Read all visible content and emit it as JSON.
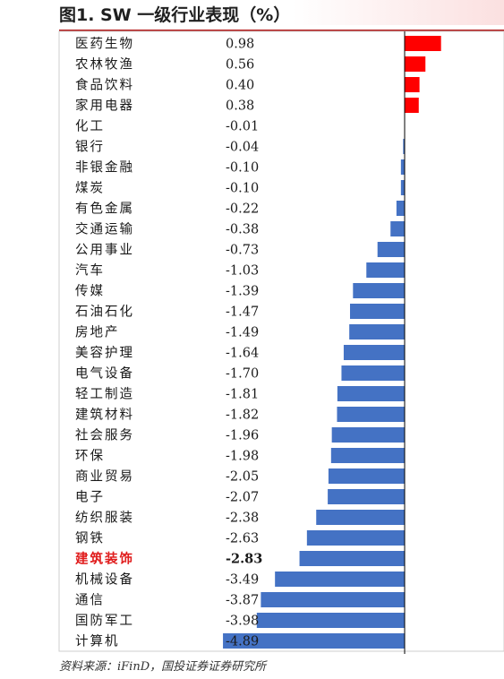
{
  "title": "图1. SW 一级行业表现（%）",
  "source": "资料来源：iFinD，国投证券证券研究所",
  "colors": {
    "positive": "#ff0000",
    "negative": "#4472c4",
    "highlight_text": "#e01c1c",
    "title_rule": "#b31b1b"
  },
  "chart_data": {
    "type": "bar",
    "orientation": "horizontal",
    "title": "图1. SW 一级行业表现（%）",
    "highlight_category": "建筑装饰",
    "categories": [
      "医药生物",
      "农林牧渔",
      "食品饮料",
      "家用电器",
      "化工",
      "银行",
      "非银金融",
      "煤炭",
      "有色金属",
      "交通运输",
      "公用事业",
      "汽车",
      "传媒",
      "石油石化",
      "房地产",
      "美容护理",
      "电气设备",
      "轻工制造",
      "建筑材料",
      "社会服务",
      "环保",
      "商业贸易",
      "电子",
      "纺织服装",
      "钢铁",
      "建筑装饰",
      "机械设备",
      "通信",
      "国防军工",
      "计算机"
    ],
    "values": [
      0.98,
      0.56,
      0.4,
      0.38,
      -0.01,
      -0.04,
      -0.1,
      -0.1,
      -0.22,
      -0.38,
      -0.73,
      -1.03,
      -1.39,
      -1.47,
      -1.49,
      -1.64,
      -1.7,
      -1.81,
      -1.82,
      -1.96,
      -1.98,
      -2.05,
      -2.07,
      -2.38,
      -2.63,
      -2.83,
      -3.49,
      -3.87,
      -3.98,
      -4.89
    ],
    "value_labels": [
      "0.98",
      "0.56",
      "0.40",
      "0.38",
      "-0.01",
      "-0.04",
      "-0.10",
      "-0.10",
      "-0.22",
      "-0.38",
      "-0.73",
      "-1.03",
      "-1.39",
      "-1.47",
      "-1.49",
      "-1.64",
      "-1.70",
      "-1.81",
      "-1.82",
      "-1.96",
      "-1.98",
      "-2.05",
      "-2.07",
      "-2.38",
      "-2.63",
      "-2.83",
      "-3.49",
      "-3.87",
      "-3.98",
      "-4.89"
    ],
    "xlim": [
      -5.0,
      1.1
    ]
  }
}
